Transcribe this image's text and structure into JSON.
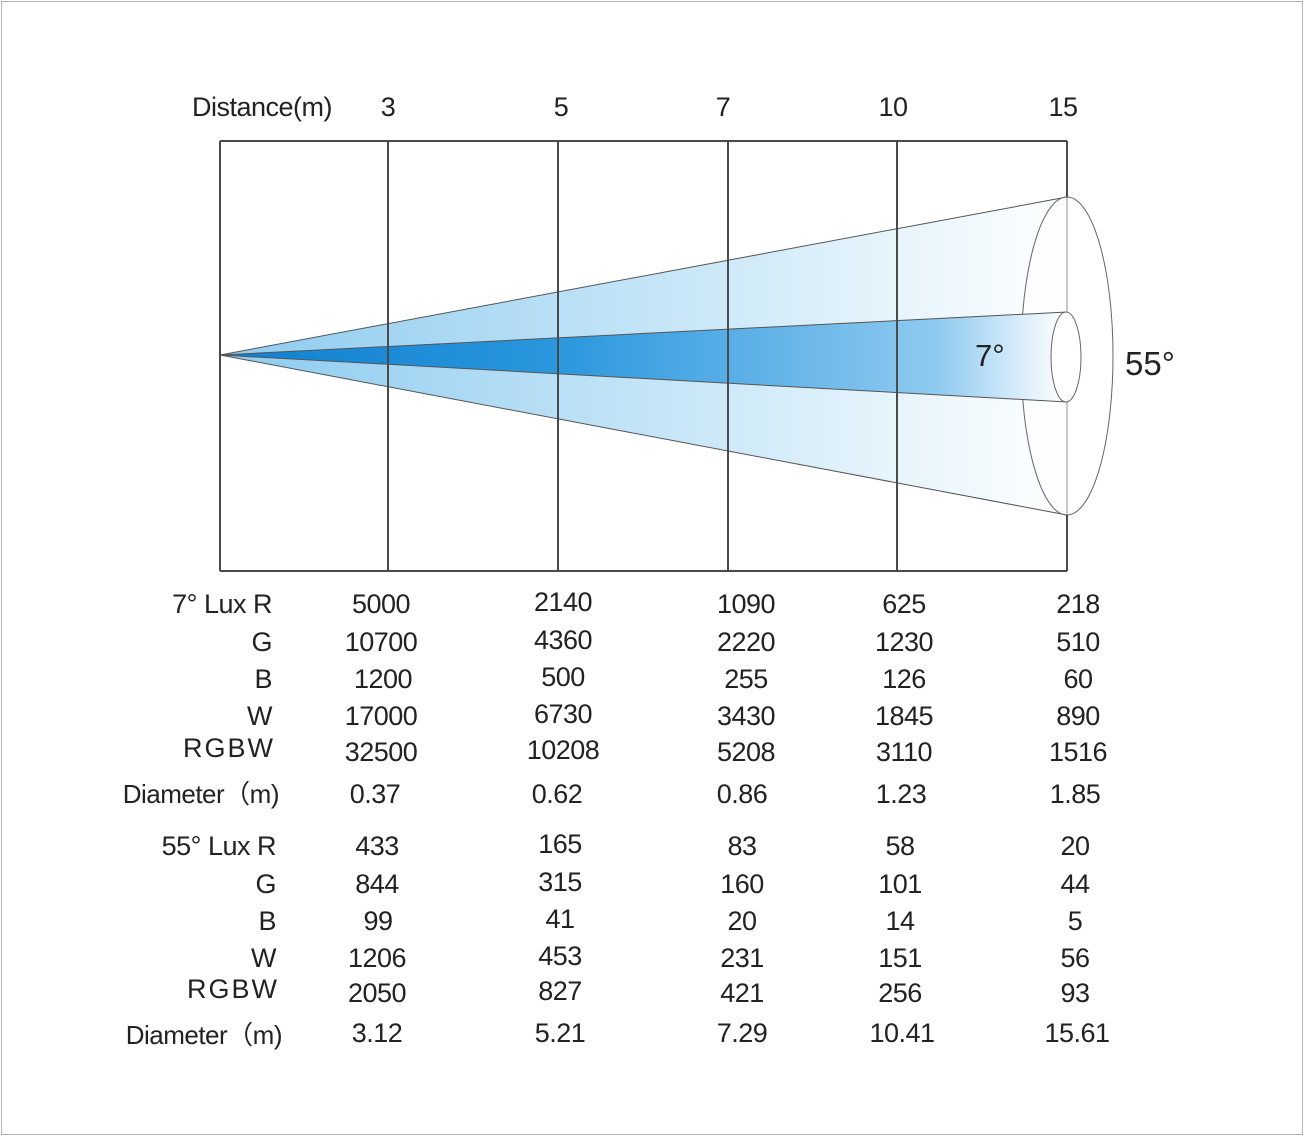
{
  "header": {
    "distance_label": "Distance(m)",
    "distances": [
      "3",
      "5",
      "7",
      "10",
      "15"
    ]
  },
  "angles": {
    "narrow": "7°",
    "wide": "55°"
  },
  "colors": {
    "narrow_beam": "#1e96dc",
    "wide_beam": "#b8def5",
    "grid_line": "#4a4a4a"
  },
  "table_7": {
    "rows": [
      {
        "label": "7° Lux R",
        "values": [
          "5000",
          "2140",
          "1090",
          "625",
          "218"
        ]
      },
      {
        "label": "G",
        "values": [
          "10700",
          "4360",
          "2220",
          "1230",
          "510"
        ]
      },
      {
        "label": "B",
        "values": [
          "1200",
          "500",
          "255",
          "126",
          "60"
        ]
      },
      {
        "label": "W",
        "values": [
          "17000",
          "6730",
          "3430",
          "1845",
          "890"
        ]
      },
      {
        "label": "RGBW",
        "values": [
          "32500",
          "10208",
          "5208",
          "3110",
          "1516"
        ]
      },
      {
        "label": "Diameter（m)",
        "values": [
          "0.37",
          "0.62",
          "0.86",
          "1.23",
          "1.85"
        ]
      }
    ]
  },
  "table_55": {
    "rows": [
      {
        "label": "55° Lux R",
        "values": [
          "433",
          "165",
          "83",
          "58",
          "20"
        ]
      },
      {
        "label": "G",
        "values": [
          "844",
          "315",
          "160",
          "101",
          "44"
        ]
      },
      {
        "label": "B",
        "values": [
          "99",
          "41",
          "20",
          "14",
          "5"
        ]
      },
      {
        "label": "W",
        "values": [
          "1206",
          "453",
          "231",
          "151",
          "56"
        ]
      },
      {
        "label": "RGBW",
        "values": [
          "2050",
          "827",
          "421",
          "256",
          "93"
        ]
      },
      {
        "label": "Diameter（m)",
        "values": [
          "3.12",
          "5.21",
          "7.29",
          "10.41",
          "15.61"
        ]
      }
    ]
  }
}
